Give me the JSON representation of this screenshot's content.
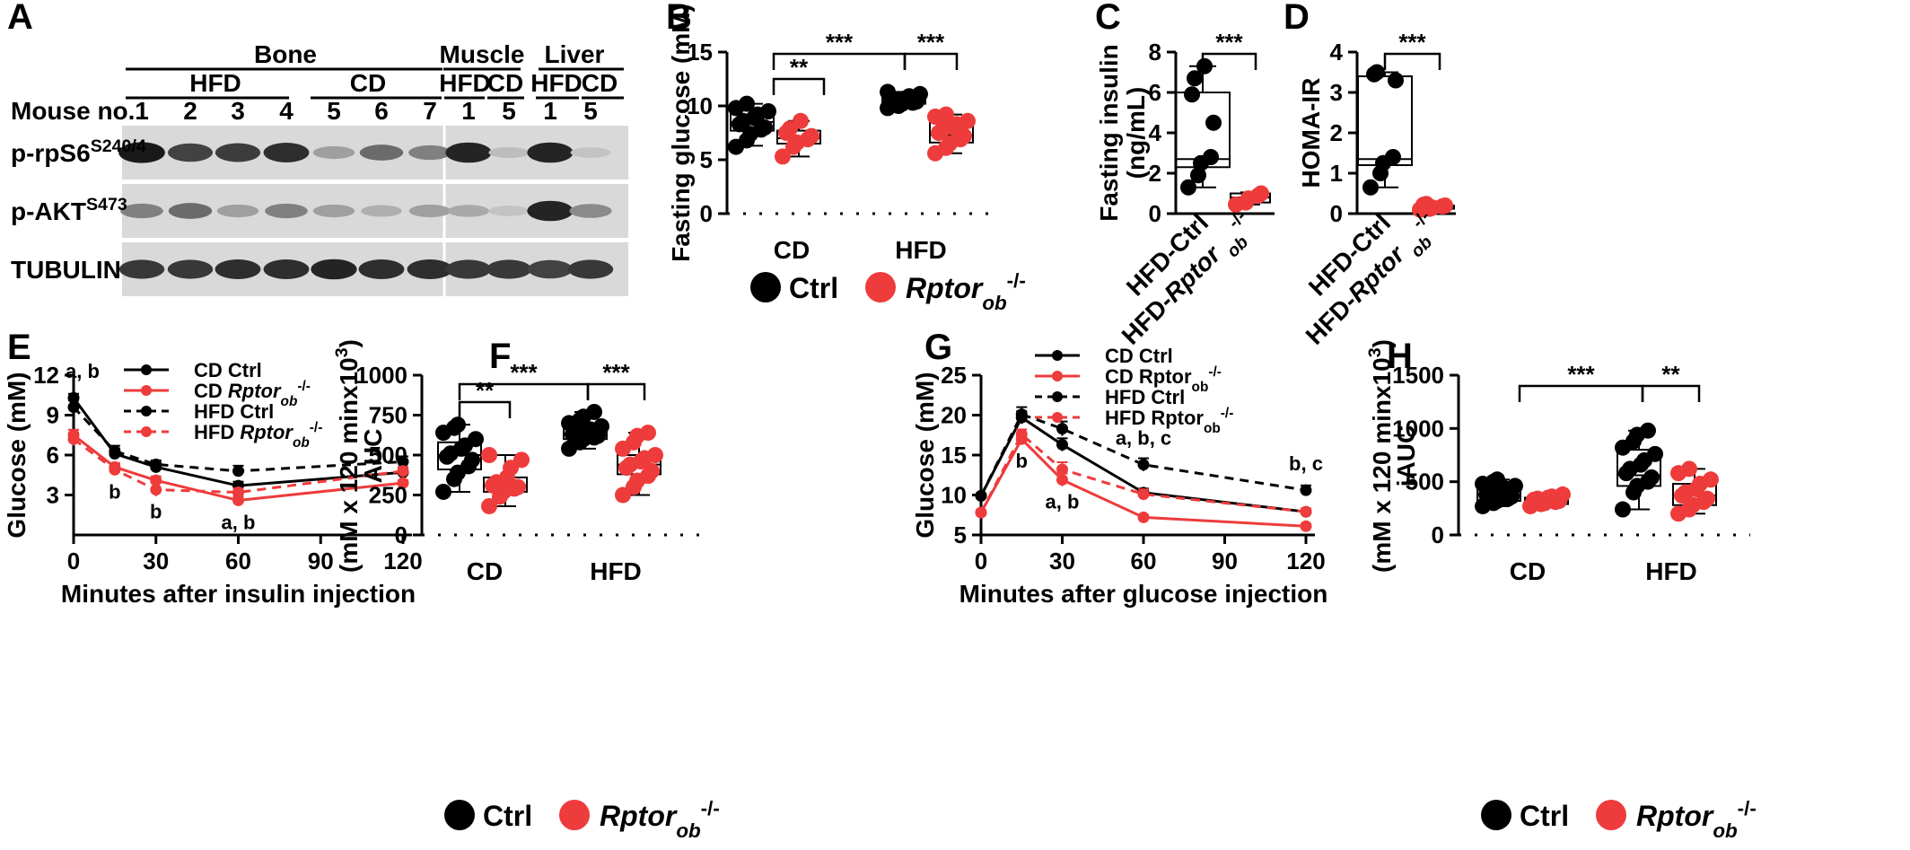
{
  "panel_labels": [
    "A",
    "B",
    "C",
    "D",
    "E",
    "F",
    "G",
    "H"
  ],
  "blot": {
    "groups": [
      {
        "label": "Bone",
        "sub": [
          {
            "label": "HFD"
          },
          {
            "label": "CD"
          }
        ]
      },
      {
        "label": "Muscle",
        "sub": [
          {
            "label": "HFD"
          },
          {
            "label": "CD"
          }
        ]
      },
      {
        "label": "Liver",
        "sub": [
          {
            "label": "HFD"
          },
          {
            "label": "CD"
          }
        ]
      }
    ],
    "mouse_label": "Mouse no.",
    "mouse_numbers": [
      "1",
      "2",
      "3",
      "4",
      "5",
      "6",
      "7",
      "1",
      "5",
      "1",
      "5"
    ],
    "rows": [
      {
        "base": "p-rpS6",
        "sup": "S240/4",
        "intensity": [
          0.95,
          0.75,
          0.78,
          0.85,
          0.3,
          0.55,
          0.45,
          0.9,
          0.15,
          0.9,
          0.12
        ]
      },
      {
        "base": "p-AKT",
        "sup": "S473",
        "intensity": [
          0.45,
          0.55,
          0.3,
          0.45,
          0.3,
          0.22,
          0.3,
          0.25,
          0.12,
          0.9,
          0.4
        ]
      },
      {
        "base": "TUBULIN",
        "sup": "",
        "intensity": [
          0.8,
          0.8,
          0.85,
          0.85,
          0.9,
          0.85,
          0.85,
          0.8,
          0.8,
          0.75,
          0.8
        ]
      }
    ]
  },
  "legend_bottom": {
    "ctrl": "Ctrl",
    "mut_base": "Rptor",
    "mut_sub": "ob",
    "mut_sup": "-/-"
  },
  "chart_data": [
    {
      "panel": "B",
      "type": "scatter",
      "ylabel": "Fasting glucose (mM)",
      "categories": [
        "CD",
        "HFD"
      ],
      "ylim": [
        0,
        15
      ],
      "yticks": [
        0,
        5,
        10,
        15
      ],
      "series": [
        {
          "name": "Ctrl",
          "groups": [
            {
              "category": "CD",
              "values": [
                6.2,
                6.8,
                7.4,
                7.8,
                8.0,
                8.3,
                8.6,
                8.9,
                9.2,
                9.5,
                9.8,
                10.2
              ],
              "box": [
                6.3,
                7.7,
                8.5,
                9.6,
                10.2
              ]
            },
            {
              "category": "HFD",
              "values": [
                9.8,
                10.0,
                10.2,
                10.3,
                10.4,
                10.5,
                10.6,
                10.7,
                10.9,
                11.1,
                11.3
              ],
              "box": [
                9.8,
                10.2,
                10.5,
                10.8,
                11.3
              ]
            }
          ]
        },
        {
          "name": "Rptor_ob -/-",
          "groups": [
            {
              "category": "CD",
              "values": [
                5.3,
                6.2,
                6.6,
                6.9,
                7.2,
                7.5,
                7.9,
                8.6
              ],
              "box": [
                5.3,
                6.5,
                7.0,
                7.7,
                8.6
              ]
            },
            {
              "category": "HFD",
              "values": [
                5.6,
                6.1,
                6.5,
                6.9,
                7.2,
                7.5,
                7.8,
                8.0,
                8.3,
                8.6,
                9.0,
                9.2
              ],
              "box": [
                5.6,
                6.6,
                7.3,
                8.6,
                9.2
              ]
            }
          ]
        }
      ],
      "significance": [
        {
          "pair": "CD Ctrl vs CD Rptor",
          "label": "**"
        },
        {
          "pair": "CD Ctrl vs HFD Ctrl",
          "label": "***"
        },
        {
          "pair": "HFD Ctrl vs HFD Rptor",
          "label": "***"
        }
      ]
    },
    {
      "panel": "C",
      "type": "scatter",
      "ylabel": "Fasting insulin (ng/mL)",
      "categories": [
        "HFD-Ctrl",
        "HFD-Rptor ob -/-"
      ],
      "ylim": [
        0,
        8
      ],
      "yticks": [
        0,
        2,
        4,
        6,
        8
      ],
      "series": [
        {
          "name": "HFD-Ctrl",
          "values": [
            1.3,
            1.9,
            2.5,
            2.8,
            4.5,
            5.9,
            6.7,
            7.3
          ],
          "box": [
            1.3,
            2.3,
            2.7,
            6.0,
            7.3
          ]
        },
        {
          "name": "HFD-Rptor ob -/-",
          "values": [
            0.45,
            0.55,
            0.75,
            0.9,
            1.0
          ],
          "box": [
            0.45,
            0.55,
            0.8,
            1.0,
            1.05
          ]
        }
      ],
      "significance": [
        {
          "pair": "HFD-Ctrl vs HFD-Rptor",
          "label": "***"
        }
      ]
    },
    {
      "panel": "D",
      "type": "scatter",
      "ylabel": "HOMA-IR",
      "categories": [
        "HFD-Ctrl",
        "HFD-Rptor ob -/-"
      ],
      "ylim": [
        0,
        4
      ],
      "yticks": [
        0,
        1,
        2,
        3,
        4
      ],
      "series": [
        {
          "name": "HFD-Ctrl",
          "values": [
            0.65,
            1.0,
            1.25,
            1.4,
            3.3,
            3.45,
            3.5
          ],
          "box": [
            0.65,
            1.2,
            1.35,
            3.4,
            3.5
          ]
        },
        {
          "name": "HFD-Rptor ob -/-",
          "values": [
            0.1,
            0.12,
            0.15,
            0.18,
            0.2,
            0.22,
            0.24
          ],
          "box": [
            0.08,
            0.12,
            0.16,
            0.2,
            0.24
          ]
        }
      ],
      "significance": [
        {
          "pair": "HFD-Ctrl vs HFD-Rptor",
          "label": "***"
        }
      ]
    },
    {
      "panel": "E",
      "type": "line",
      "xlabel": "Minutes after insulin injection",
      "ylabel": "Glucose (mM)",
      "x": [
        0,
        15,
        30,
        60,
        120
      ],
      "xlim": [
        0,
        120
      ],
      "xticks": [
        0,
        30,
        60,
        90,
        120
      ],
      "ylim": [
        0,
        12
      ],
      "yticks": [
        3,
        6,
        9,
        12
      ],
      "series": [
        {
          "name": "CD Ctrl",
          "style": "solid",
          "color": "#000000",
          "values": [
            10.3,
            6.1,
            5.1,
            3.7,
            4.7
          ],
          "err": [
            0.3,
            0.4,
            0.3,
            0.3,
            0.3
          ]
        },
        {
          "name": "CD Rptor ob -/-",
          "style": "solid",
          "color": "#ee3b3b",
          "values": [
            7.5,
            5.1,
            4.1,
            2.6,
            3.9
          ],
          "err": [
            0.4,
            0.3,
            0.3,
            0.3,
            0.2
          ]
        },
        {
          "name": "HFD Ctrl",
          "style": "dashed",
          "color": "#000000",
          "values": [
            9.6,
            6.3,
            5.3,
            4.8,
            5.5
          ],
          "err": [
            0.5,
            0.4,
            0.3,
            0.4,
            0.4
          ]
        },
        {
          "name": "HFD Rptor ob -/-",
          "style": "dashed",
          "color": "#ee3b3b",
          "values": [
            7.2,
            4.9,
            3.4,
            3.2,
            4.8
          ],
          "err": [
            0.5,
            0.4,
            0.5,
            0.3,
            0.3
          ]
        }
      ],
      "annotations": [
        {
          "x": 0,
          "y": 10.3,
          "text": "a, b",
          "pos": "above"
        },
        {
          "x": 15,
          "y": 4.9,
          "text": "b",
          "pos": "below"
        },
        {
          "x": 30,
          "y": 3.4,
          "text": "b",
          "pos": "below"
        },
        {
          "x": 60,
          "y": 2.6,
          "text": "a, b",
          "pos": "below"
        }
      ]
    },
    {
      "panel": "F",
      "type": "scatter",
      "ylabel": "AUC",
      "ylabel2_base": "(mM x 120 minx10",
      "ylabel2_sup": "3",
      "ylabel2_end": ")",
      "categories": [
        "CD",
        "HFD"
      ],
      "ylim": [
        0,
        1000
      ],
      "yticks": [
        0,
        250,
        500,
        750,
        1000
      ],
      "series": [
        {
          "name": "Ctrl",
          "groups": [
            {
              "category": "CD",
              "values": [
                270,
                350,
                390,
                430,
                470,
                490,
                510,
                540,
                560,
                600,
                640,
                670,
                690
              ],
              "box": [
                270,
                410,
                500,
                580,
                690
              ]
            },
            {
              "category": "HFD",
              "values": [
                540,
                580,
                600,
                610,
                620,
                630,
                640,
                650,
                660,
                680,
                700,
                720,
                740,
                770
              ],
              "box": [
                540,
                600,
                630,
                680,
                770
              ]
            }
          ]
        },
        {
          "name": "Rptor_ob -/-",
          "groups": [
            {
              "category": "CD",
              "values": [
                180,
                240,
                270,
                290,
                300,
                310,
                330,
                360,
                420,
                470,
                500
              ],
              "box": [
                180,
                270,
                310,
                360,
                500
              ]
            },
            {
              "category": "HFD",
              "values": [
                250,
                300,
                340,
                370,
                400,
                420,
                440,
                460,
                480,
                500,
                540,
                580,
                620,
                640
              ],
              "box": [
                250,
                380,
                440,
                500,
                640
              ]
            }
          ]
        }
      ],
      "significance": [
        {
          "pair": "CD Ctrl vs CD Rptor",
          "label": "**"
        },
        {
          "pair": "CD Ctrl vs HFD Ctrl",
          "label": "***"
        },
        {
          "pair": "HFD Ctrl vs HFD Rptor",
          "label": "***"
        }
      ]
    },
    {
      "panel": "G",
      "type": "line",
      "xlabel": "Minutes after glucose injection",
      "ylabel": "Glucose (mM)",
      "x": [
        0,
        15,
        30,
        60,
        120
      ],
      "xlim": [
        0,
        120
      ],
      "xticks": [
        0,
        30,
        60,
        90,
        120
      ],
      "ylim": [
        5,
        25
      ],
      "yticks": [
        5,
        10,
        15,
        20,
        25
      ],
      "series": [
        {
          "name": "CD Ctrl",
          "style": "solid",
          "color": "#000000",
          "values": [
            9.9,
            19.7,
            16.3,
            10.3,
            7.9
          ],
          "err": [
            0.3,
            0.8,
            0.8,
            0.5,
            0.4
          ]
        },
        {
          "name": "CD Rptor ob -/-",
          "style": "solid",
          "color": "#ee3b3b",
          "values": [
            7.8,
            17.0,
            11.9,
            7.2,
            6.1
          ],
          "err": [
            0.3,
            0.6,
            0.8,
            0.3,
            0.3
          ]
        },
        {
          "name": "HFD Ctrl",
          "style": "dashed",
          "color": "#000000",
          "values": [
            9.9,
            20.1,
            18.3,
            13.8,
            10.6
          ],
          "err": [
            0.3,
            0.9,
            0.9,
            0.8,
            0.6
          ]
        },
        {
          "name": "HFD Rptor ob -/-",
          "style": "dashed",
          "color": "#ee3b3b",
          "values": [
            7.8,
            17.6,
            13.2,
            10.1,
            7.9
          ],
          "err": [
            0.3,
            0.6,
            0.9,
            0.6,
            0.4
          ]
        }
      ],
      "annotations": [
        {
          "x": 15,
          "y": 17.0,
          "text": "b",
          "pos": "below"
        },
        {
          "x": 30,
          "y": 11.9,
          "text": "a, b",
          "pos": "below"
        },
        {
          "x": 60,
          "y": 13.8,
          "text": "a, b, c",
          "pos": "above"
        },
        {
          "x": 120,
          "y": 10.6,
          "text": "b, c",
          "pos": "above"
        }
      ]
    },
    {
      "panel": "H",
      "type": "scatter",
      "ylabel": "iAUC",
      "ylabel2_base": "(mM x 120 minx10",
      "ylabel2_sup": "3",
      "ylabel2_end": ")",
      "categories": [
        "CD",
        "HFD"
      ],
      "ylim": [
        0,
        1500
      ],
      "yticks": [
        0,
        500,
        1000,
        1500
      ],
      "series": [
        {
          "name": "Ctrl",
          "groups": [
            {
              "category": "CD",
              "values": [
                270,
                300,
                320,
                340,
                360,
                380,
                400,
                420,
                440,
                460,
                480,
                500,
                520
              ],
              "box": [
                270,
                320,
                380,
                440,
                520
              ]
            },
            {
              "category": "HFD",
              "values": [
                240,
                400,
                460,
                500,
                540,
                580,
                620,
                660,
                700,
                760,
                820,
                880,
                940,
                980
              ],
              "box": [
                240,
                460,
                560,
                800,
                980
              ]
            }
          ]
        },
        {
          "name": "Rptor_ob -/-",
          "groups": [
            {
              "category": "CD",
              "values": [
                270,
                290,
                300,
                310,
                320,
                330,
                340,
                350,
                360,
                380
              ],
              "box": [
                270,
                290,
                320,
                350,
                380
              ]
            },
            {
              "category": "HFD",
              "values": [
                200,
                240,
                280,
                310,
                340,
                370,
                400,
                430,
                480,
                520,
                580,
                620
              ],
              "box": [
                200,
                280,
                370,
                480,
                620
              ]
            }
          ]
        }
      ],
      "significance": [
        {
          "pair": "CD Ctrl vs HFD Ctrl",
          "label": "***"
        },
        {
          "pair": "HFD Ctrl vs HFD Rptor",
          "label": "**"
        }
      ]
    }
  ]
}
